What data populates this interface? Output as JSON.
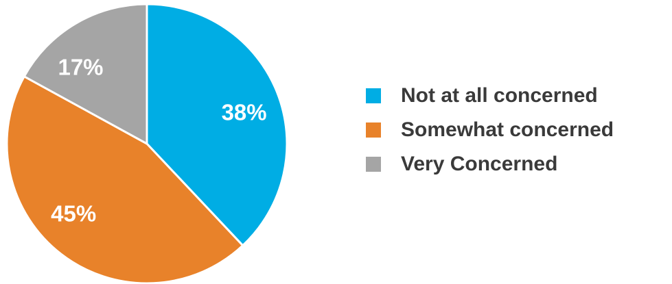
{
  "chart_data": {
    "type": "pie",
    "categories": [
      "Not at all concerned",
      "Somewhat concerned",
      "Very Concerned"
    ],
    "values": [
      38,
      45,
      17
    ],
    "value_labels": [
      "38%",
      "45%",
      "17%"
    ],
    "colors": [
      "#00ade4",
      "#e8822a",
      "#a5a5a5"
    ],
    "start_angle": "12 o'clock",
    "direction": "clockwise",
    "legend_position": "right"
  }
}
